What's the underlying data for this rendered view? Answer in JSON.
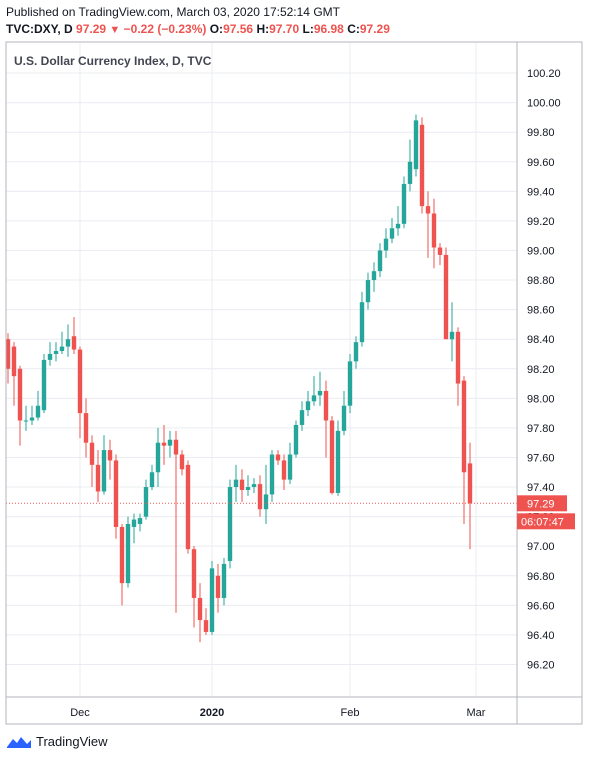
{
  "header": {
    "published": "Published on TradingView.com, March 03, 2020 17:52:14 GMT",
    "symbol": "TVC:DXY, D",
    "last": "97.29",
    "change": "−0.22 (−0.23%)",
    "o_label": "O:",
    "o": "97.56",
    "h_label": "H:",
    "h": "97.70",
    "l_label": "L:",
    "l": "96.98",
    "c_label": "C:",
    "c": "97.29"
  },
  "chart_title": "U.S. Dollar Currency Index, D, TVC",
  "price_tag": {
    "price": "97.29",
    "countdown": "06:07:47"
  },
  "brand": "TradingView",
  "colors": {
    "up": "#26a69a",
    "down": "#ef5350",
    "grid": "#e9ecf2",
    "axis": "#787b86"
  },
  "chart_data": {
    "type": "candlestick",
    "title": "U.S. Dollar Currency Index, D, TVC",
    "ylim": [
      95.98,
      100.41
    ],
    "yticks": [
      96.2,
      96.4,
      96.6,
      96.8,
      97.0,
      97.2,
      97.4,
      97.6,
      97.8,
      98.0,
      98.2,
      98.4,
      98.6,
      98.8,
      99.0,
      99.2,
      99.4,
      99.6,
      99.8,
      100.0,
      100.2
    ],
    "xticks": [
      {
        "label": "Dec",
        "index": 12
      },
      {
        "label": "2020",
        "index": 34
      },
      {
        "label": "Feb",
        "index": 57
      },
      {
        "label": "Mar",
        "index": 78
      }
    ],
    "last_price": 97.29,
    "candles": [
      {
        "o": 98.4,
        "h": 98.44,
        "l": 98.1,
        "c": 98.2
      },
      {
        "o": 98.35,
        "h": 98.38,
        "l": 97.95,
        "c": 98.15
      },
      {
        "o": 98.2,
        "h": 98.22,
        "l": 97.68,
        "c": 97.85
      },
      {
        "o": 97.85,
        "h": 97.95,
        "l": 97.78,
        "c": 97.85
      },
      {
        "o": 97.85,
        "h": 97.95,
        "l": 97.82,
        "c": 97.87
      },
      {
        "o": 97.87,
        "h": 98.05,
        "l": 97.85,
        "c": 97.95
      },
      {
        "o": 97.92,
        "h": 98.3,
        "l": 97.9,
        "c": 98.26
      },
      {
        "o": 98.26,
        "h": 98.38,
        "l": 98.22,
        "c": 98.3
      },
      {
        "o": 98.3,
        "h": 98.38,
        "l": 98.25,
        "c": 98.32
      },
      {
        "o": 98.32,
        "h": 98.45,
        "l": 98.3,
        "c": 98.35
      },
      {
        "o": 98.35,
        "h": 98.5,
        "l": 98.28,
        "c": 98.4
      },
      {
        "o": 98.42,
        "h": 98.55,
        "l": 98.3,
        "c": 98.33
      },
      {
        "o": 98.33,
        "h": 98.35,
        "l": 97.73,
        "c": 97.9
      },
      {
        "o": 97.9,
        "h": 98.0,
        "l": 97.6,
        "c": 97.7
      },
      {
        "o": 97.7,
        "h": 97.75,
        "l": 97.4,
        "c": 97.55
      },
      {
        "o": 97.55,
        "h": 97.65,
        "l": 97.3,
        "c": 97.37
      },
      {
        "o": 97.37,
        "h": 97.75,
        "l": 97.35,
        "c": 97.65
      },
      {
        "o": 97.65,
        "h": 97.72,
        "l": 97.45,
        "c": 97.58
      },
      {
        "o": 97.58,
        "h": 97.62,
        "l": 97.05,
        "c": 97.13
      },
      {
        "o": 97.13,
        "h": 97.15,
        "l": 96.6,
        "c": 96.75
      },
      {
        "o": 96.75,
        "h": 97.2,
        "l": 96.72,
        "c": 97.15
      },
      {
        "o": 97.13,
        "h": 97.22,
        "l": 97.02,
        "c": 97.18
      },
      {
        "o": 97.15,
        "h": 97.22,
        "l": 97.1,
        "c": 97.19
      },
      {
        "o": 97.2,
        "h": 97.45,
        "l": 97.18,
        "c": 97.4
      },
      {
        "o": 97.4,
        "h": 97.55,
        "l": 97.38,
        "c": 97.5
      },
      {
        "o": 97.5,
        "h": 97.8,
        "l": 97.4,
        "c": 97.7
      },
      {
        "o": 97.7,
        "h": 97.82,
        "l": 97.55,
        "c": 97.68
      },
      {
        "o": 97.68,
        "h": 97.78,
        "l": 97.6,
        "c": 97.72
      },
      {
        "o": 97.72,
        "h": 97.78,
        "l": 96.55,
        "c": 97.62
      },
      {
        "o": 97.62,
        "h": 97.65,
        "l": 97.48,
        "c": 97.52
      },
      {
        "o": 97.55,
        "h": 97.58,
        "l": 96.95,
        "c": 96.98
      },
      {
        "o": 96.98,
        "h": 97.0,
        "l": 96.45,
        "c": 96.65
      },
      {
        "o": 96.65,
        "h": 96.75,
        "l": 96.35,
        "c": 96.5
      },
      {
        "o": 96.5,
        "h": 96.58,
        "l": 96.4,
        "c": 96.42
      },
      {
        "o": 96.42,
        "h": 96.9,
        "l": 96.4,
        "c": 96.85
      },
      {
        "o": 96.8,
        "h": 96.88,
        "l": 96.55,
        "c": 96.65
      },
      {
        "o": 96.65,
        "h": 96.92,
        "l": 96.6,
        "c": 96.88
      },
      {
        "o": 96.9,
        "h": 97.45,
        "l": 96.85,
        "c": 97.4
      },
      {
        "o": 97.4,
        "h": 97.55,
        "l": 97.3,
        "c": 97.45
      },
      {
        "o": 97.45,
        "h": 97.52,
        "l": 97.3,
        "c": 97.38
      },
      {
        "o": 97.38,
        "h": 97.48,
        "l": 97.34,
        "c": 97.4
      },
      {
        "o": 97.4,
        "h": 97.46,
        "l": 97.36,
        "c": 97.42
      },
      {
        "o": 97.42,
        "h": 97.48,
        "l": 97.2,
        "c": 97.25
      },
      {
        "o": 97.25,
        "h": 97.55,
        "l": 97.15,
        "c": 97.35
      },
      {
        "o": 97.35,
        "h": 97.65,
        "l": 97.3,
        "c": 97.62
      },
      {
        "o": 97.62,
        "h": 97.65,
        "l": 97.55,
        "c": 97.58
      },
      {
        "o": 97.58,
        "h": 97.62,
        "l": 97.38,
        "c": 97.45
      },
      {
        "o": 97.45,
        "h": 97.7,
        "l": 97.42,
        "c": 97.62
      },
      {
        "o": 97.62,
        "h": 97.85,
        "l": 97.6,
        "c": 97.82
      },
      {
        "o": 97.82,
        "h": 97.98,
        "l": 97.78,
        "c": 97.92
      },
      {
        "o": 97.92,
        "h": 98.05,
        "l": 97.88,
        "c": 97.98
      },
      {
        "o": 97.98,
        "h": 98.15,
        "l": 97.95,
        "c": 98.02
      },
      {
        "o": 98.02,
        "h": 98.18,
        "l": 97.95,
        "c": 98.05
      },
      {
        "o": 98.05,
        "h": 98.12,
        "l": 97.6,
        "c": 97.85
      },
      {
        "o": 97.85,
        "h": 97.88,
        "l": 97.35,
        "c": 97.36
      },
      {
        "o": 97.36,
        "h": 97.85,
        "l": 97.34,
        "c": 97.78
      },
      {
        "o": 97.78,
        "h": 98.05,
        "l": 97.75,
        "c": 97.95
      },
      {
        "o": 97.95,
        "h": 98.3,
        "l": 97.9,
        "c": 98.25
      },
      {
        "o": 98.25,
        "h": 98.42,
        "l": 98.2,
        "c": 98.38
      },
      {
        "o": 98.38,
        "h": 98.72,
        "l": 98.35,
        "c": 98.65
      },
      {
        "o": 98.65,
        "h": 98.85,
        "l": 98.6,
        "c": 98.8
      },
      {
        "o": 98.8,
        "h": 98.92,
        "l": 98.72,
        "c": 98.86
      },
      {
        "o": 98.86,
        "h": 99.05,
        "l": 98.82,
        "c": 99.0
      },
      {
        "o": 99.0,
        "h": 99.15,
        "l": 98.95,
        "c": 99.08
      },
      {
        "o": 99.08,
        "h": 99.22,
        "l": 99.05,
        "c": 99.15
      },
      {
        "o": 99.15,
        "h": 99.3,
        "l": 99.1,
        "c": 99.18
      },
      {
        "o": 99.18,
        "h": 99.5,
        "l": 99.15,
        "c": 99.45
      },
      {
        "o": 99.45,
        "h": 99.75,
        "l": 99.4,
        "c": 99.6
      },
      {
        "o": 99.55,
        "h": 99.92,
        "l": 99.5,
        "c": 99.88
      },
      {
        "o": 99.85,
        "h": 99.9,
        "l": 99.25,
        "c": 99.3
      },
      {
        "o": 99.3,
        "h": 99.4,
        "l": 98.95,
        "c": 99.25
      },
      {
        "o": 99.25,
        "h": 99.35,
        "l": 98.88,
        "c": 99.02
      },
      {
        "o": 99.02,
        "h": 99.05,
        "l": 98.9,
        "c": 98.97
      },
      {
        "o": 98.97,
        "h": 99.02,
        "l": 98.4,
        "c": 98.4
      },
      {
        "o": 98.4,
        "h": 98.65,
        "l": 98.25,
        "c": 98.45
      },
      {
        "o": 98.45,
        "h": 98.48,
        "l": 97.95,
        "c": 98.1
      },
      {
        "o": 98.12,
        "h": 98.15,
        "l": 97.15,
        "c": 97.5
      },
      {
        "o": 97.56,
        "h": 97.7,
        "l": 96.98,
        "c": 97.29
      }
    ]
  }
}
